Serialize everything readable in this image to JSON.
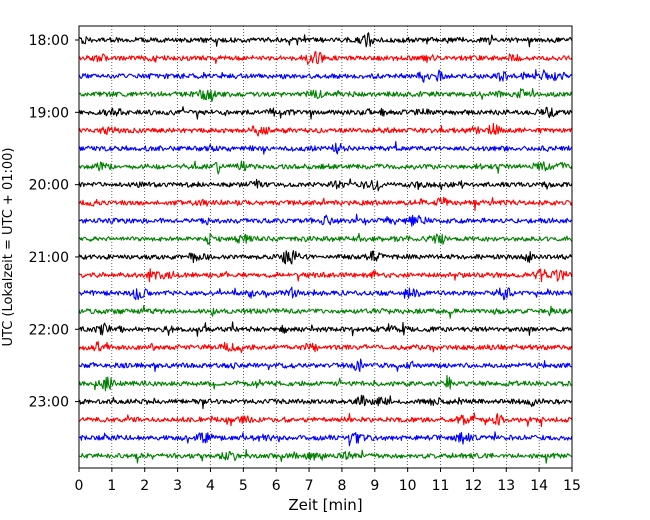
{
  "chart_data": {
    "type": "line",
    "subtype": "helicorder",
    "title": "",
    "xlabel": "Zeit  [min]",
    "ylabel": "UTC (Lokalzeit = UTC + 01:00)",
    "x_ticks": [
      0,
      1,
      2,
      3,
      4,
      5,
      6,
      7,
      8,
      9,
      10,
      11,
      12,
      13,
      14,
      15
    ],
    "xlim": [
      0,
      15
    ],
    "y_ticks": [
      "18:00",
      "19:00",
      "20:00",
      "21:00",
      "22:00",
      "23:00"
    ],
    "trace_start_time": "18:00",
    "trace_interval_minutes": 15,
    "trace_count": 24,
    "trace_colors": [
      "#000000",
      "#ff0000",
      "#0000ff",
      "#008000"
    ],
    "grid": "vertical dotted lines at each minute"
  }
}
